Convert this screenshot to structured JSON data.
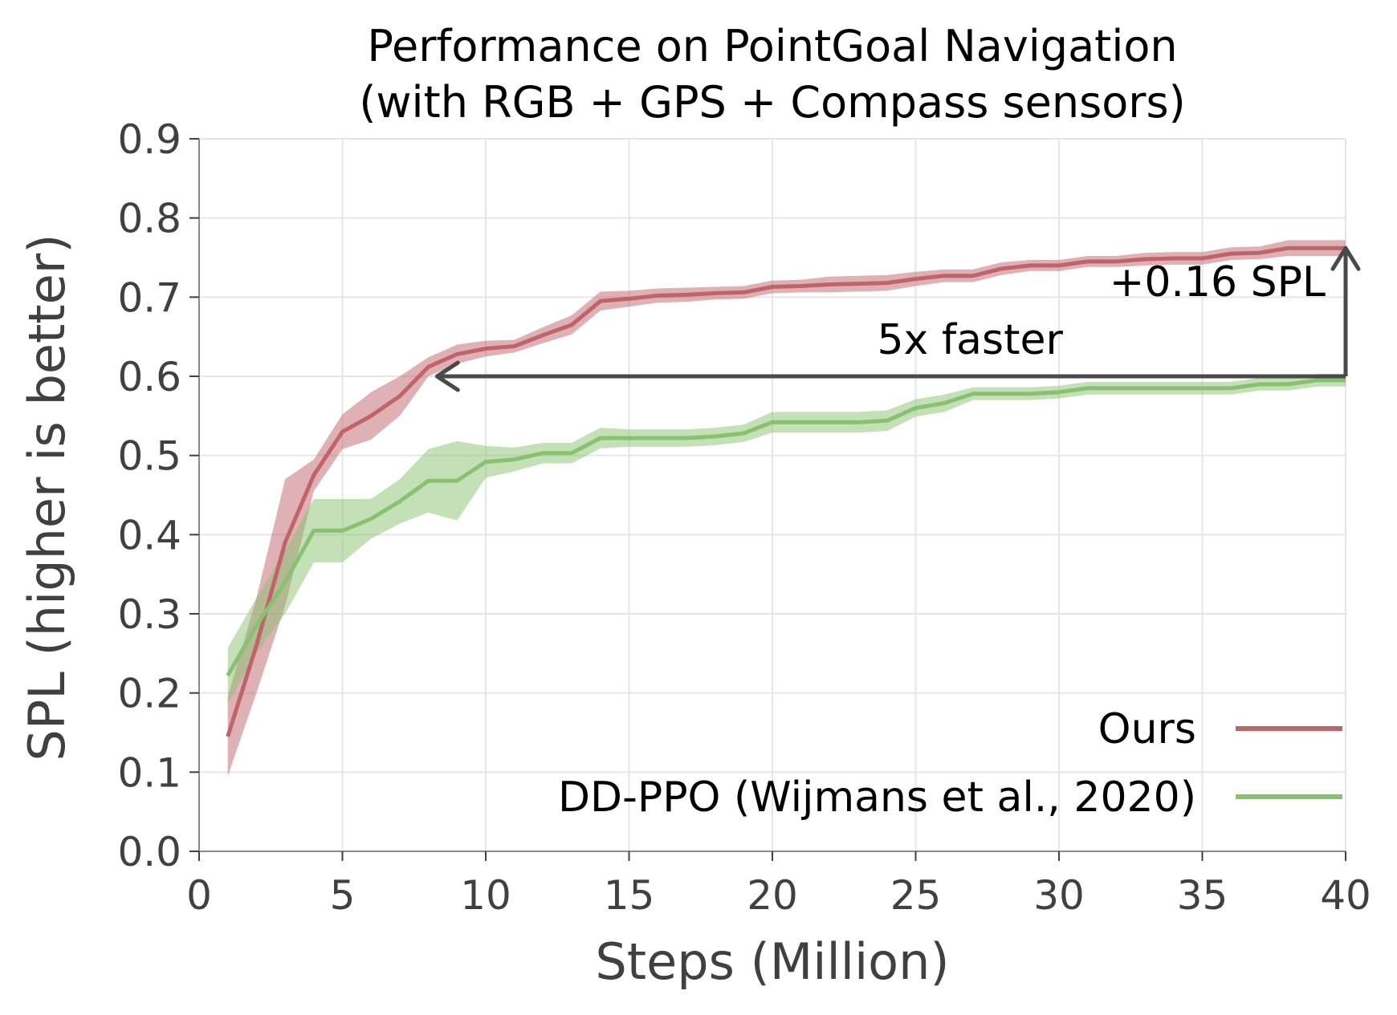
{
  "chart_data": {
    "type": "line",
    "title": "Performance on PointGoal Navigation",
    "subtitle": "(with RGB + GPS + Compass sensors)",
    "xlabel": "Steps (Million)",
    "ylabel": "SPL (higher is better)",
    "xlim": [
      0,
      40
    ],
    "ylim": [
      0.0,
      0.9
    ],
    "xticks": [
      0,
      5,
      10,
      15,
      20,
      25,
      30,
      35,
      40
    ],
    "xtick_labels": [
      "0",
      "5",
      "10",
      "15",
      "20",
      "25",
      "30",
      "35",
      "40"
    ],
    "yticks": [
      0.0,
      0.1,
      0.2,
      0.3,
      0.4,
      0.5,
      0.6,
      0.7,
      0.8,
      0.9
    ],
    "ytick_labels": [
      "0.0",
      "0.1",
      "0.2",
      "0.3",
      "0.4",
      "0.5",
      "0.6",
      "0.7",
      "0.8",
      "0.9"
    ],
    "grid": true,
    "legend_position": "bottom-right",
    "x": [
      1,
      2,
      3,
      4,
      5,
      6,
      7,
      8,
      9,
      10,
      11,
      12,
      13,
      14,
      15,
      16,
      17,
      18,
      19,
      20,
      21,
      22,
      23,
      24,
      25,
      26,
      27,
      28,
      29,
      30,
      31,
      32,
      33,
      34,
      35,
      36,
      37,
      38,
      39,
      40
    ],
    "series": [
      {
        "name": "Ours",
        "color": "#c0646a",
        "values": [
          0.145,
          0.26,
          0.39,
          0.475,
          0.53,
          0.55,
          0.575,
          0.612,
          0.628,
          0.635,
          0.638,
          0.652,
          0.665,
          0.695,
          0.698,
          0.702,
          0.703,
          0.705,
          0.706,
          0.713,
          0.714,
          0.716,
          0.717,
          0.718,
          0.723,
          0.727,
          0.727,
          0.736,
          0.74,
          0.74,
          0.745,
          0.745,
          0.748,
          0.749,
          0.749,
          0.755,
          0.756,
          0.762,
          0.762,
          0.762
        ],
        "band": [
          0.05,
          0.06,
          0.08,
          0.02,
          0.022,
          0.03,
          0.025,
          0.012,
          0.012,
          0.01,
          0.008,
          0.01,
          0.012,
          0.012,
          0.01,
          0.009,
          0.009,
          0.008,
          0.008,
          0.008,
          0.008,
          0.01,
          0.01,
          0.01,
          0.009,
          0.008,
          0.008,
          0.008,
          0.007,
          0.007,
          0.007,
          0.007,
          0.008,
          0.008,
          0.008,
          0.008,
          0.008,
          0.01,
          0.01,
          0.01
        ]
      },
      {
        "name": "DD-PPO (Wijmans et al., 2020)",
        "color": "#88c270",
        "values": [
          0.222,
          0.285,
          0.34,
          0.405,
          0.405,
          0.42,
          0.442,
          0.468,
          0.468,
          0.492,
          0.495,
          0.503,
          0.503,
          0.522,
          0.522,
          0.522,
          0.522,
          0.524,
          0.528,
          0.542,
          0.542,
          0.542,
          0.542,
          0.544,
          0.56,
          0.566,
          0.578,
          0.578,
          0.578,
          0.58,
          0.585,
          0.585,
          0.585,
          0.585,
          0.585,
          0.585,
          0.59,
          0.59,
          0.595,
          0.595
        ],
        "band": [
          0.035,
          0.035,
          0.04,
          0.04,
          0.04,
          0.025,
          0.028,
          0.04,
          0.05,
          0.02,
          0.015,
          0.013,
          0.013,
          0.013,
          0.011,
          0.011,
          0.011,
          0.011,
          0.011,
          0.013,
          0.013,
          0.013,
          0.013,
          0.013,
          0.011,
          0.011,
          0.008,
          0.008,
          0.008,
          0.008,
          0.008,
          0.008,
          0.008,
          0.008,
          0.008,
          0.008,
          0.008,
          0.008,
          0.008,
          0.008
        ]
      }
    ],
    "annotations": [
      {
        "text": "5x faster",
        "type": "horizontal-arrow",
        "from": [
          40,
          0.6
        ],
        "to": [
          8.3,
          0.6
        ]
      },
      {
        "text": "+0.16 SPL",
        "type": "vertical-arrow",
        "from": [
          40,
          0.6
        ],
        "to": [
          40,
          0.762
        ]
      }
    ],
    "annotation_color": "#4a4a4a"
  }
}
